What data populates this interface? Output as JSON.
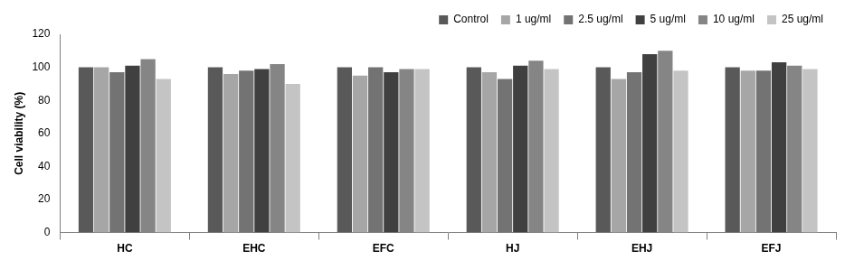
{
  "chart_data": {
    "type": "bar",
    "y_label": "Cell viability (%)",
    "categories": [
      "HC",
      "EHC",
      "EFC",
      "HJ",
      "EHJ",
      "EFJ"
    ],
    "series": [
      {
        "name": "Control",
        "color": "#595959",
        "values": [
          100,
          100,
          100,
          100,
          100,
          100
        ]
      },
      {
        "name": "1 ug/ml",
        "color": "#a6a6a6",
        "values": [
          100,
          96,
          95,
          97,
          93,
          98
        ]
      },
      {
        "name": "2.5 ug/ml",
        "color": "#737373",
        "values": [
          97,
          98,
          100,
          93,
          97,
          98
        ]
      },
      {
        "name": "5 ug/ml",
        "color": "#404040",
        "values": [
          101,
          99,
          97,
          101,
          108,
          103
        ]
      },
      {
        "name": "10 ug/ml",
        "color": "#858585",
        "values": [
          105,
          102,
          99,
          104,
          110,
          101
        ]
      },
      {
        "name": "25 ug/ml",
        "color": "#c4c4c4",
        "values": [
          93,
          90,
          99,
          99,
          98,
          99
        ]
      }
    ],
    "ylim": [
      0,
      120
    ],
    "yticks": [
      0,
      20,
      40,
      60,
      80,
      100,
      120
    ],
    "grid": false,
    "legend": "top-right"
  }
}
